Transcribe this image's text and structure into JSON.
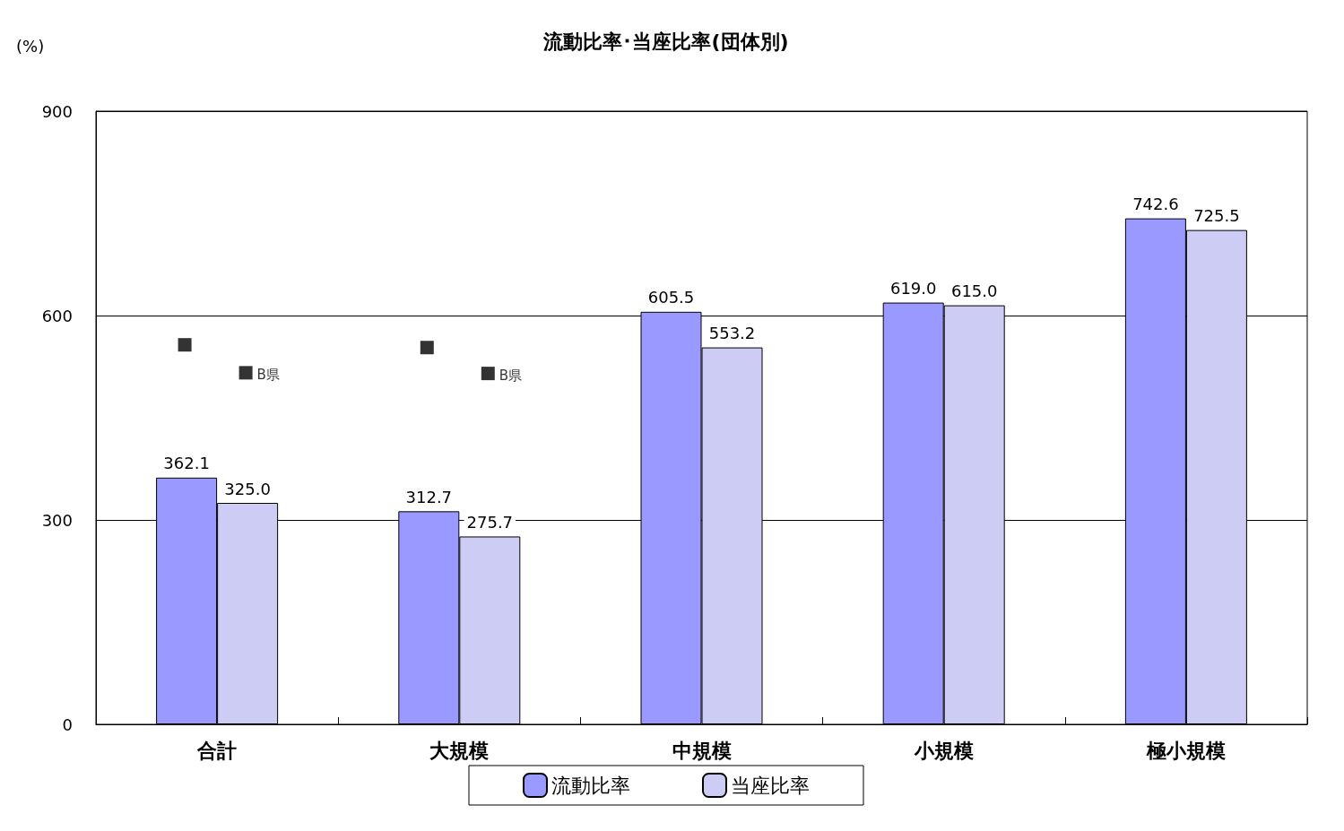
{
  "chart_data": {
    "type": "bar",
    "title": "流動比率･当座比率(団体別)",
    "ylabel": "(%)",
    "categories": [
      "合計",
      "大規模",
      "中規模",
      "小規模",
      "極小規模"
    ],
    "series": [
      {
        "name": "流動比率",
        "color": "#9999ff",
        "values": [
          362.1,
          312.7,
          605.5,
          619.0,
          742.6
        ],
        "value_labels": [
          "362.1",
          "312.7",
          "605.5",
          "619.0",
          "742.6"
        ]
      },
      {
        "name": "当座比率",
        "color": "#ccccf5",
        "values": [
          325.0,
          275.7,
          553.2,
          615.0,
          725.5
        ],
        "value_labels": [
          "325.0",
          "275.7",
          "553.2",
          "615.0",
          "725.5"
        ]
      },
      {
        "type": "scatter",
        "color": "#000000",
        "x": [
          "合計",
          "大規模"
        ],
        "values": [
          557,
          553
        ]
      },
      {
        "type": "scatter",
        "name": "B県",
        "color": "#000000",
        "x": [
          "合計",
          "大規模"
        ],
        "values": [
          516,
          515
        ]
      }
    ],
    "ylim": [
      0,
      900
    ],
    "yticks": [
      0,
      300,
      600,
      900
    ],
    "grid": "y",
    "legend": "bottom",
    "marker": "square"
  }
}
